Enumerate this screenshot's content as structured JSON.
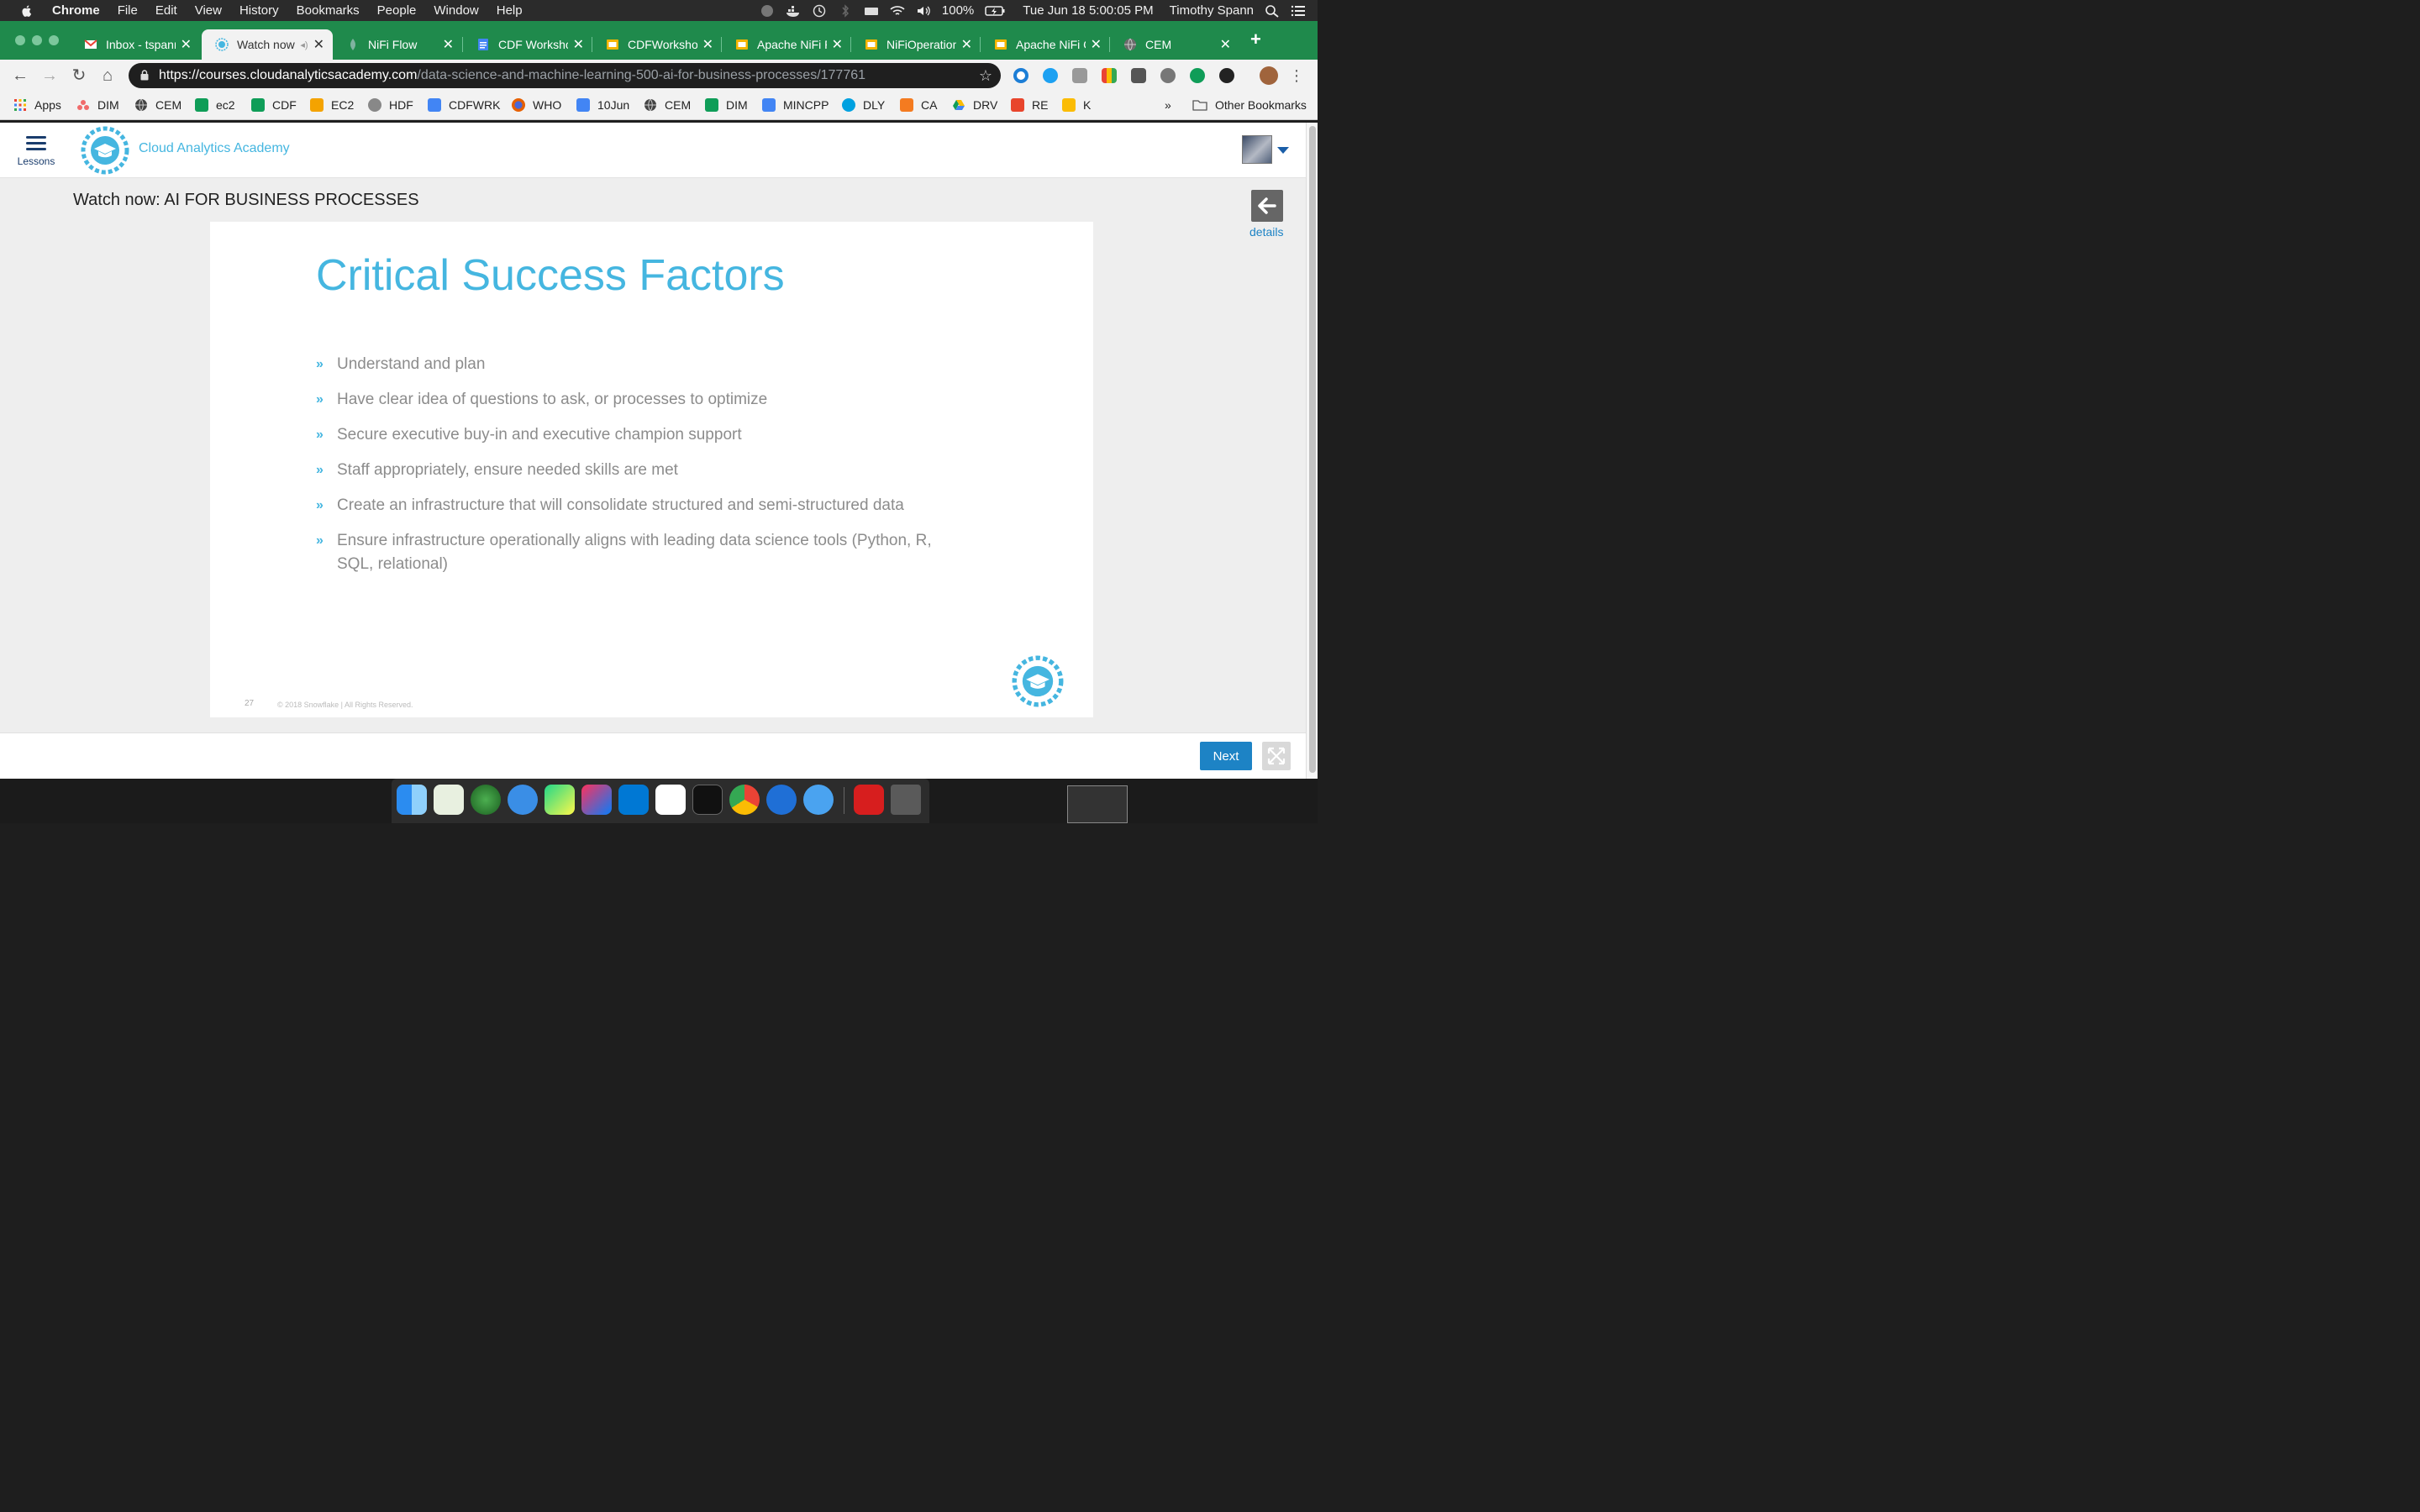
{
  "menubar": {
    "app": "Chrome",
    "items": [
      "File",
      "Edit",
      "View",
      "History",
      "Bookmarks",
      "People",
      "Window",
      "Help"
    ],
    "battery": "100%",
    "datetime": "Tue Jun 18  5:00:05 PM",
    "user": "Timothy Spann"
  },
  "tabs": [
    {
      "title": "Inbox - tspann",
      "favicon": "gmail-icon",
      "color": "#ea4335"
    },
    {
      "title": "Watch now",
      "favicon": "cloud-academy-icon",
      "color": "#45b6e0",
      "active": true
    },
    {
      "title": "NiFi Flow",
      "favicon": "nifi-icon",
      "color": "#7fb3a0"
    },
    {
      "title": "CDF Workshop",
      "favicon": "docs-icon",
      "color": "#4285f4"
    },
    {
      "title": "CDFWorkshop",
      "favicon": "slides-icon",
      "color": "#f4b400"
    },
    {
      "title": "Apache NiFi P",
      "favicon": "slides-icon",
      "color": "#f4b400"
    },
    {
      "title": "NiFiOperations",
      "favicon": "slides-icon",
      "color": "#f4b400"
    },
    {
      "title": "Apache NiFi C",
      "favicon": "slides-icon",
      "color": "#f4b400"
    },
    {
      "title": "CEM",
      "favicon": "globe-icon",
      "color": "#666666"
    }
  ],
  "address": {
    "host": "https://courses.cloudanalyticsacademy.com",
    "path": "/data-science-and-machine-learning-500-ai-for-business-processes/177761"
  },
  "bookmarks": [
    {
      "label": "Apps",
      "icon": "apps-grid-icon",
      "color": "#ea4335"
    },
    {
      "label": "DIM",
      "icon": "asana-icon",
      "color": "#f06a6a"
    },
    {
      "label": "CEM",
      "icon": "globe-icon",
      "color": "#555555"
    },
    {
      "label": "ec2",
      "icon": "sheets-icon",
      "color": "#0f9d58"
    },
    {
      "label": "CDF",
      "icon": "sheets-icon",
      "color": "#0f9d58"
    },
    {
      "label": "EC2",
      "icon": "aws-box-icon",
      "color": "#f4a300"
    },
    {
      "label": "HDF",
      "icon": "nifi-icon",
      "color": "#888888"
    },
    {
      "label": "CDFWRK",
      "icon": "docs-icon",
      "color": "#4285f4"
    },
    {
      "label": "WHO",
      "icon": "firefox-icon",
      "color": "#e66000"
    },
    {
      "label": "10Jun",
      "icon": "docs-icon",
      "color": "#4285f4"
    },
    {
      "label": "CEM",
      "icon": "globe-icon",
      "color": "#555555"
    },
    {
      "label": "DIM",
      "icon": "sheets-icon",
      "color": "#0f9d58"
    },
    {
      "label": "MINCPP",
      "icon": "docs-icon",
      "color": "#4285f4"
    },
    {
      "label": "DLY",
      "icon": "salesforce-cloud-icon",
      "color": "#00a1e0"
    },
    {
      "label": "CA",
      "icon": "orange-badge-icon",
      "color": "#f47b20"
    },
    {
      "label": "DRV",
      "icon": "drive-icon",
      "color": "#0f9d58"
    },
    {
      "label": "RE",
      "icon": "red-c-icon",
      "color": "#e8452c"
    },
    {
      "label": "K",
      "icon": "keep-icon",
      "color": "#fbbc04"
    }
  ],
  "bookmarks_more": "»",
  "other_bookmarks": "Other Bookmarks",
  "site": {
    "lessons_label": "Lessons",
    "brand": "Cloud Analytics Academy",
    "watch_title": "Watch now: AI FOR BUSINESS PROCESSES",
    "details_label": "details",
    "next_label": "Next"
  },
  "slide": {
    "title": "Critical Success Factors",
    "bullets": [
      "Understand and plan",
      "Have clear idea of questions to ask, or processes to optimize",
      "Secure executive buy-in and executive champion support",
      "Staff appropriately, ensure needed skills are met",
      "Create an infrastructure that will consolidate structured and semi-structured data",
      "Ensure infrastructure operationally aligns with leading data science tools (Python, R, SQL, relational)"
    ],
    "page_number": "27",
    "copyright": "© 2018 Snowflake  |  All Rights Reserved."
  },
  "colors": {
    "accent": "#45b6e0",
    "chrome_green": "#1f8a4c",
    "button_blue": "#1d83c5"
  }
}
